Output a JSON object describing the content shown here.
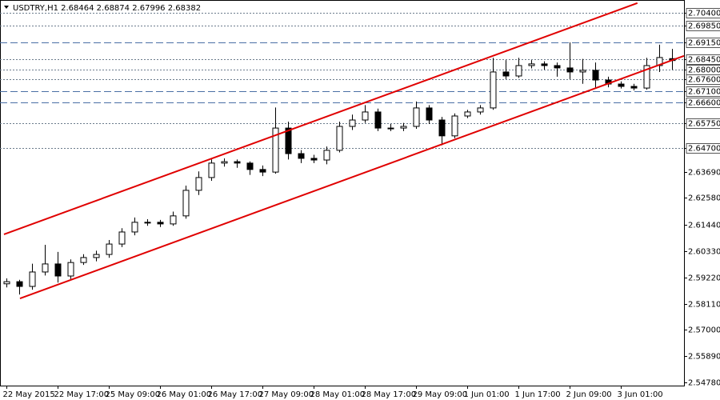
{
  "chart_data": {
    "type": "candlestick",
    "title": "USDTRY,H1  2.68464 2.68874 2.67996 2.68382",
    "open": [
      2.5895,
      2.5904,
      2.5884,
      2.5945,
      2.5979,
      2.5928,
      2.5985,
      2.6006,
      2.6019,
      2.6063,
      2.6114,
      2.6155,
      2.6155,
      2.6148,
      2.6182,
      2.629,
      2.6344,
      2.6405,
      2.6411,
      2.6405,
      2.6378,
      2.6367,
      2.6553,
      2.6445,
      2.6425,
      2.6418,
      2.6459,
      2.656,
      2.6587,
      2.6621,
      2.6553,
      2.6553,
      2.656,
      2.6638,
      2.6587,
      2.652,
      2.6604,
      2.6621,
      2.6638,
      2.679,
      2.6773,
      2.6817,
      2.6824,
      2.6817,
      2.6807,
      2.679,
      2.6797,
      2.6756,
      2.6739,
      2.6729,
      2.6722,
      2.6817,
      2.68464
    ],
    "high": [
      2.5918,
      2.5912,
      2.598,
      2.606,
      2.603,
      2.5998,
      2.602,
      2.6035,
      2.608,
      2.613,
      2.6175,
      2.6168,
      2.6165,
      2.62,
      2.631,
      2.637,
      2.642,
      2.6425,
      2.642,
      2.6412,
      2.6395,
      2.664,
      2.658,
      2.646,
      2.644,
      2.6475,
      2.658,
      2.661,
      2.665,
      2.6635,
      2.657,
      2.6575,
      2.6665,
      2.665,
      2.66,
      2.6615,
      2.663,
      2.665,
      2.685,
      2.684,
      2.685,
      2.684,
      2.6835,
      2.683,
      2.6915,
      2.6845,
      2.683,
      2.677,
      2.675,
      2.674,
      2.685,
      2.6905,
      2.68874
    ],
    "low": [
      2.588,
      2.585,
      2.587,
      2.593,
      2.59,
      2.5915,
      2.5975,
      2.599,
      2.6005,
      2.605,
      2.61,
      2.614,
      2.6135,
      2.614,
      2.617,
      2.627,
      2.633,
      2.639,
      2.6385,
      2.6355,
      2.635,
      2.636,
      2.642,
      2.6405,
      2.6405,
      2.64,
      2.645,
      2.6545,
      2.6575,
      2.654,
      2.654,
      2.654,
      2.655,
      2.657,
      2.648,
      2.651,
      2.6595,
      2.661,
      2.663,
      2.676,
      2.6765,
      2.6805,
      2.68,
      2.677,
      2.676,
      2.674,
      2.672,
      2.6725,
      2.672,
      2.6712,
      2.6715,
      2.679,
      2.67996
    ],
    "close": [
      2.5904,
      2.5884,
      2.5945,
      2.5979,
      2.5928,
      2.5985,
      2.6006,
      2.6019,
      2.6063,
      2.6114,
      2.6155,
      2.6155,
      2.6148,
      2.6182,
      2.629,
      2.6344,
      2.6405,
      2.6411,
      2.6405,
      2.6378,
      2.6367,
      2.6553,
      2.6445,
      2.6425,
      2.6418,
      2.6459,
      2.656,
      2.6587,
      2.6621,
      2.6553,
      2.6553,
      2.656,
      2.6638,
      2.6587,
      2.652,
      2.6604,
      2.6621,
      2.6638,
      2.679,
      2.6773,
      2.6817,
      2.6824,
      2.6817,
      2.6807,
      2.679,
      2.6797,
      2.6756,
      2.6739,
      2.6729,
      2.6722,
      2.6817,
      2.6851,
      2.68382
    ],
    "xlim": [
      -0.5,
      52.94
    ],
    "ylim": [
      2.5465,
      2.7094
    ],
    "xticks": [
      {
        "value": 0,
        "label": "22 May 2015"
      },
      {
        "value": 4,
        "label": "22 May 17:00"
      },
      {
        "value": 8,
        "label": "25 May 09:00"
      },
      {
        "value": 12,
        "label": "26 May 01:00"
      },
      {
        "value": 16,
        "label": "26 May 17:00"
      },
      {
        "value": 20,
        "label": "27 May 09:00"
      },
      {
        "value": 24,
        "label": "28 May 01:00"
      },
      {
        "value": 28,
        "label": "28 May 17:00"
      },
      {
        "value": 32,
        "label": "29 May 09:00"
      },
      {
        "value": 36,
        "label": "1 Jun 01:00"
      },
      {
        "value": 40,
        "label": "1 Jun 17:00"
      },
      {
        "value": 44,
        "label": "2 Jun 09:00"
      },
      {
        "value": 48,
        "label": "3 Jun 01:00"
      }
    ],
    "yticks": [
      {
        "value": 2.6369,
        "label": "2.63690"
      },
      {
        "value": 2.6258,
        "label": "2.62580"
      },
      {
        "value": 2.6144,
        "label": "2.61440"
      },
      {
        "value": 2.6033,
        "label": "2.60330"
      },
      {
        "value": 2.5922,
        "label": "2.59220"
      },
      {
        "value": 2.5811,
        "label": "2.58110"
      },
      {
        "value": 2.57,
        "label": "2.57000"
      },
      {
        "value": 2.5589,
        "label": "2.55890"
      },
      {
        "value": 2.5478,
        "label": "2.54780"
      }
    ],
    "levels": [
      {
        "value": 2.704,
        "label": "2.70400",
        "style": "dotted"
      },
      {
        "value": 2.6985,
        "label": "2.69850",
        "style": "dotted"
      },
      {
        "value": 2.6915,
        "label": "2.69150",
        "style": "dashed"
      },
      {
        "value": 2.6845,
        "label": "2.68450",
        "style": "dotted"
      },
      {
        "value": 2.68,
        "label": "2.68000",
        "style": "dotted"
      },
      {
        "value": 2.676,
        "label": "2.67600",
        "style": "dotted"
      },
      {
        "value": 2.671,
        "label": "2.67100",
        "style": "dashed"
      },
      {
        "value": 2.666,
        "label": "2.66600",
        "style": "dashed"
      },
      {
        "value": 2.6575,
        "label": "2.65750",
        "style": "dotted"
      },
      {
        "value": 2.647,
        "label": "2.64700",
        "style": "dotted"
      }
    ],
    "trendlines": [
      {
        "x": [
          -0.19,
          49.3
        ],
        "y": [
          2.6104,
          2.7081
        ],
        "color": "#e00000"
      },
      {
        "x": [
          1.06,
          52.94
        ],
        "y": [
          2.5833,
          2.6858
        ],
        "color": "#e00000"
      }
    ],
    "up_color": "#ffffff",
    "down_color": "#000000"
  }
}
